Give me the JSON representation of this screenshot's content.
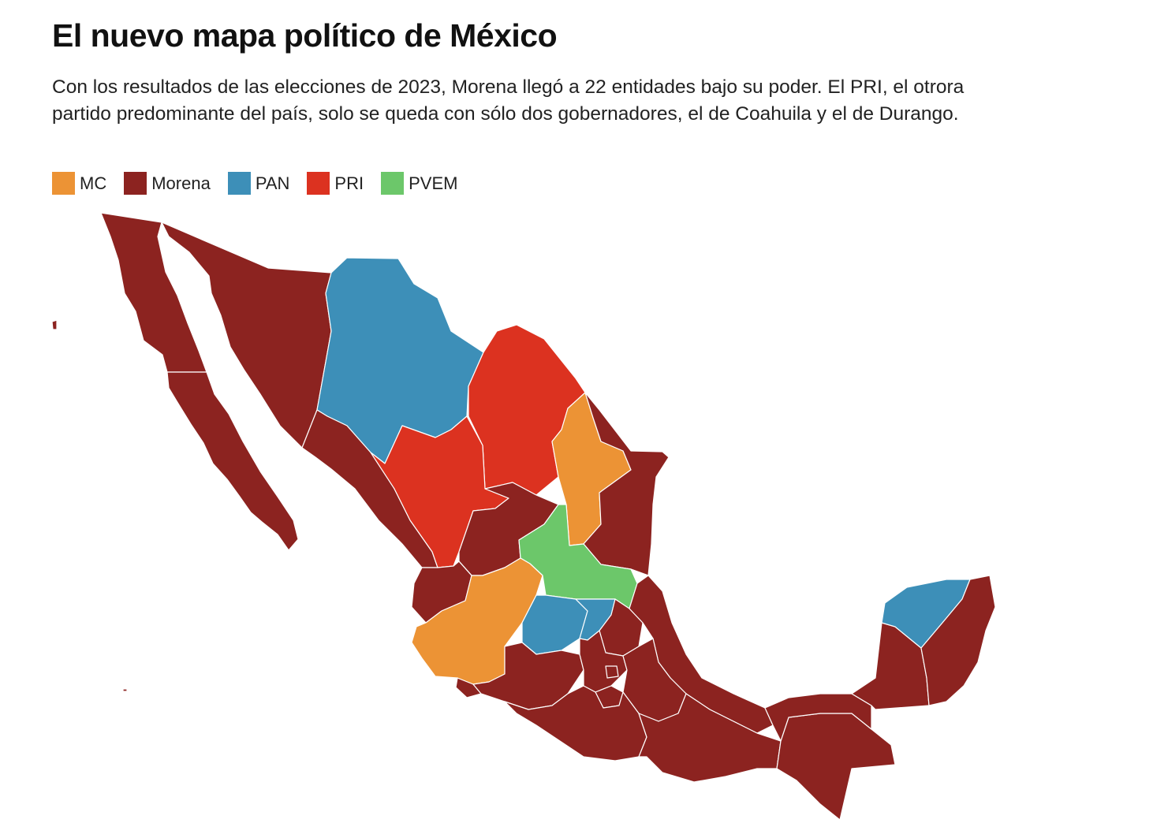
{
  "header": {
    "title": "El nuevo mapa político de México",
    "subtitle": "Con los resultados de las elecciones de 2023, Morena llegó a 22 entidades bajo su poder. El PRI, el otrora partido predominante del país, solo se queda con sólo dos gobernadores, el de Coahuila y el de Durango."
  },
  "legend": [
    {
      "label": "MC",
      "color": "#ec9335"
    },
    {
      "label": "Morena",
      "color": "#8c2320"
    },
    {
      "label": "PAN",
      "color": "#3d8fb8"
    },
    {
      "label": "PRI",
      "color": "#dc3220"
    },
    {
      "label": "PVEM",
      "color": "#6cc76a"
    }
  ],
  "map": {
    "party_colors": {
      "MC": "#ec9335",
      "Morena": "#8c2320",
      "PAN": "#3d8fb8",
      "PRI": "#dc3220",
      "PVEM": "#6cc76a"
    },
    "states": [
      {
        "state": "Baja California",
        "party": "Morena"
      },
      {
        "state": "Baja California Sur",
        "party": "Morena"
      },
      {
        "state": "Sonora",
        "party": "Morena"
      },
      {
        "state": "Chihuahua",
        "party": "PAN"
      },
      {
        "state": "Coahuila",
        "party": "PRI"
      },
      {
        "state": "Nuevo León",
        "party": "MC"
      },
      {
        "state": "Tamaulipas",
        "party": "Morena"
      },
      {
        "state": "Sinaloa",
        "party": "Morena"
      },
      {
        "state": "Durango",
        "party": "PRI"
      },
      {
        "state": "Zacatecas",
        "party": "Morena"
      },
      {
        "state": "San Luis Potosí",
        "party": "PVEM"
      },
      {
        "state": "Nayarit",
        "party": "Morena"
      },
      {
        "state": "Aguascalientes",
        "party": "PAN"
      },
      {
        "state": "Jalisco",
        "party": "MC"
      },
      {
        "state": "Guanajuato",
        "party": "PAN"
      },
      {
        "state": "Querétaro",
        "party": "PAN"
      },
      {
        "state": "Hidalgo",
        "party": "Morena"
      },
      {
        "state": "Veracruz",
        "party": "Morena"
      },
      {
        "state": "Colima",
        "party": "Morena"
      },
      {
        "state": "Michoacán",
        "party": "Morena"
      },
      {
        "state": "Estado de México",
        "party": "Morena"
      },
      {
        "state": "Ciudad de México",
        "party": "Morena"
      },
      {
        "state": "Morelos",
        "party": "Morena"
      },
      {
        "state": "Tlaxcala",
        "party": "Morena"
      },
      {
        "state": "Puebla",
        "party": "Morena"
      },
      {
        "state": "Guerrero",
        "party": "Morena"
      },
      {
        "state": "Oaxaca",
        "party": "Morena"
      },
      {
        "state": "Chiapas",
        "party": "Morena"
      },
      {
        "state": "Tabasco",
        "party": "Morena"
      },
      {
        "state": "Campeche",
        "party": "Morena"
      },
      {
        "state": "Yucatán",
        "party": "PAN"
      },
      {
        "state": "Quintana Roo",
        "party": "Morena"
      }
    ]
  }
}
